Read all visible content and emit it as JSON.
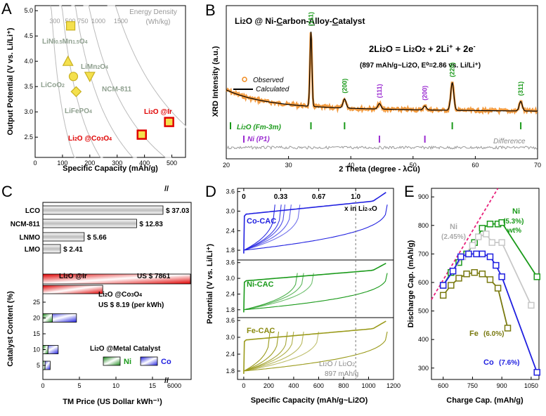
{
  "panel_letters": [
    "A",
    "B",
    "C",
    "D",
    "E"
  ],
  "chart_data": [
    {
      "id": "A",
      "type": "scatter",
      "title": "",
      "xlabel": "Specific Capacity (mAh/g)",
      "ylabel": "Output Potential (V vs. Li/Li⁺)",
      "xlim": [
        0,
        550
      ],
      "ylim": [
        2.1,
        5.1
      ],
      "xticks": [
        "0",
        "100",
        "200",
        "300",
        "400",
        "500"
      ],
      "yticks": [
        "2.5",
        "3.0",
        "3.5",
        "4.0",
        "4.5",
        "5.0"
      ],
      "energy_density_title": "Energy Density",
      "energy_density_unit": "(Wh/kg)",
      "energy_density_curves": [
        "300",
        "500",
        "750",
        "1000",
        "1500"
      ],
      "points": [
        {
          "label": "LiNi0.5Mn1.5O4",
          "x": 130,
          "y": 4.7,
          "marker": "square",
          "color": "#f4e04d"
        },
        {
          "label": "LiMn2O4",
          "x": 120,
          "y": 4.0,
          "marker": "triangle-up",
          "color": "#f4e04d"
        },
        {
          "label": "LiCoO2",
          "x": 140,
          "y": 3.7,
          "marker": "circle",
          "color": "#f4e04d"
        },
        {
          "label": "NCM-811",
          "x": 200,
          "y": 3.7,
          "marker": "triangle-down",
          "color": "#f4e04d"
        },
        {
          "label": "LiFePO4",
          "x": 150,
          "y": 3.4,
          "marker": "diamond",
          "color": "#f4e04d"
        },
        {
          "label": "Li2O @Ir",
          "x": 490,
          "y": 2.8,
          "marker": "square",
          "color": "#f4e04d",
          "edge": "#e00000"
        },
        {
          "label": "Li2O @Co3O4",
          "x": 390,
          "y": 2.55,
          "marker": "square",
          "color": "#f4e04d",
          "edge": "#e00000"
        }
      ]
    },
    {
      "id": "B",
      "type": "line",
      "title": "Li2O @ Ni-Carbon-Alloy-Catalyst",
      "xlabel": "2 Theta (degree - λCu)",
      "ylabel": "XRD Intensity (a.u.)",
      "xlim": [
        20,
        70
      ],
      "xticks": [
        "20",
        "30",
        "40",
        "50",
        "60",
        "70"
      ],
      "equation": "2Li2O = Li2O2 + 2Li⁺ + 2e⁻",
      "equation_note": "(897 mAh/g~Li2O, E⁰=2.86 vs. Li/Li⁺)",
      "legend": [
        "Observed",
        "Calculated"
      ],
      "difference_label": "Difference",
      "li2o_phase": "Li2O (Fm-3m)",
      "ni_phase": "Ni (P1)",
      "li2o_peaks": [
        {
          "two_theta": 33.6,
          "hkl": "(111)",
          "height": 1.0
        },
        {
          "two_theta": 39.0,
          "hkl": "(200)",
          "height": 0.12
        },
        {
          "two_theta": 56.3,
          "hkl": "(220)",
          "height": 0.35
        },
        {
          "two_theta": 67.3,
          "hkl": "(311)",
          "height": 0.12
        }
      ],
      "ni_peaks": [
        {
          "two_theta": 44.6,
          "hkl": "(111)",
          "height": 0.07
        },
        {
          "two_theta": 51.9,
          "hkl": "(200)",
          "height": 0.05
        }
      ]
    },
    {
      "id": "C",
      "type": "bar",
      "xlabel": "TM Price (US Dollar kWh⁻¹)",
      "ylabel": "Catalyst Content (%)",
      "xticks": [
        "0",
        "5",
        "10",
        "15",
        "6000"
      ],
      "yticks": [
        "5",
        "10",
        "15",
        "20",
        "25"
      ],
      "break_symbol": "//",
      "cathode_bars": [
        {
          "label": "LCO",
          "value": 37.03,
          "text": "$ 37.03"
        },
        {
          "label": "NCM-811",
          "value": 12.83,
          "text": "$ 12.83"
        },
        {
          "label": "LNMO",
          "value": 5.66,
          "text": "$ 5.66"
        },
        {
          "label": "LMO",
          "value": 2.41,
          "text": "$ 2.41"
        }
      ],
      "li2o_ir": {
        "label": "Li2O @Ir",
        "text": "US $ 7861",
        "value": 7861
      },
      "li2o_co3o4": {
        "label": "Li2O @Co3O4",
        "text": "US $ 8.19 (per kWh)",
        "value": 8.19
      },
      "catalyst_legend_title": "Li2O @Metal Catalyst",
      "catalyst_series": [
        {
          "name": "Ni",
          "values": [
            {
              "content": 20,
              "price": 1.3
            },
            {
              "content": 10,
              "price": 0.7
            },
            {
              "content": 5,
              "price": 0.3
            }
          ]
        },
        {
          "name": "Co",
          "values": [
            {
              "content": 20,
              "price": 4.6
            },
            {
              "content": 10,
              "price": 2.1
            },
            {
              "content": 5,
              "price": 1.0
            }
          ]
        }
      ]
    },
    {
      "id": "D",
      "type": "line",
      "xlabel": "Specific Capacity (mAh/g~Li2O)",
      "ylabel": "Potential (V vs. Li/Li⁺)",
      "xlim": [
        -50,
        1200
      ],
      "xticks": [
        "0",
        "200",
        "400",
        "600",
        "800",
        "1000",
        "1200"
      ],
      "yticks": [
        "1.8",
        "2.4",
        "3.0",
        "3.6"
      ],
      "top_ticks": [
        "0",
        "0.33",
        "0.67",
        "1.0"
      ],
      "top_label": "x in Li2-xO",
      "vline_label_1": "Li2O / Li2O2",
      "vline_label_2": "897 mAh/g",
      "vline_at": 897,
      "subpanels": [
        {
          "name": "Co-CAC",
          "color": "#2020e0",
          "discharge_ends": [
            1000,
            450,
            380,
            330,
            300,
            250
          ],
          "charge_end": 1150
        },
        {
          "name": "Ni-CAC",
          "color": "#1a9a1a",
          "discharge_ends": [
            1000,
            560,
            480,
            430
          ],
          "charge_end": 1150
        },
        {
          "name": "Fe-CAC",
          "color": "#9a9a1a",
          "discharge_ends": [
            1000,
            600,
            480,
            400,
            350,
            280,
            210
          ],
          "charge_end": 1150
        }
      ]
    },
    {
      "id": "E",
      "type": "line",
      "xlabel": "Charge Cap. (mAh/g)",
      "ylabel": "Discharge Cap. (mAh/g)",
      "xlim": [
        540,
        1090
      ],
      "ylim": [
        260,
        930
      ],
      "xticks": [
        "600",
        "750",
        "900",
        "1050"
      ],
      "yticks": [
        "300",
        "400",
        "500",
        "600",
        "700",
        "800",
        "900"
      ],
      "series": [
        {
          "name": "Ni",
          "label_1": "Ni",
          "label_2": "(5.3%)",
          "label_3": "wt%",
          "color": "#1a9a1a",
          "x": [
            600,
            640,
            680,
            720,
            760,
            800,
            840,
            880,
            900,
            1080
          ],
          "y": [
            590,
            635,
            670,
            700,
            740,
            790,
            805,
            805,
            810,
            620
          ]
        },
        {
          "name": "Ni",
          "label_1": "Ni",
          "label_2": "(2.45%)",
          "color": "#c8c8c8",
          "x": [
            600,
            650,
            700,
            750,
            780,
            820,
            850,
            900,
            1050
          ],
          "y": [
            590,
            640,
            690,
            730,
            760,
            770,
            740,
            740,
            520
          ]
        },
        {
          "name": "Co",
          "label_1": "Co",
          "label_2": "(7.6%)",
          "color": "#2020e0",
          "x": [
            600,
            650,
            690,
            730,
            770,
            800,
            840,
            870,
            900,
            1080
          ],
          "y": [
            590,
            640,
            690,
            700,
            700,
            700,
            690,
            660,
            620,
            285
          ]
        },
        {
          "name": "Fe",
          "label_1": "Fe",
          "label_2": "(6.0%)",
          "color": "#7a7a10",
          "x": [
            600,
            640,
            680,
            720,
            760,
            800,
            840,
            880,
            930
          ],
          "y": [
            555,
            590,
            615,
            630,
            635,
            630,
            610,
            580,
            440
          ]
        }
      ],
      "dashed_line": {
        "x": [
          540,
          880
        ],
        "y": [
          540,
          930
        ]
      }
    }
  ]
}
